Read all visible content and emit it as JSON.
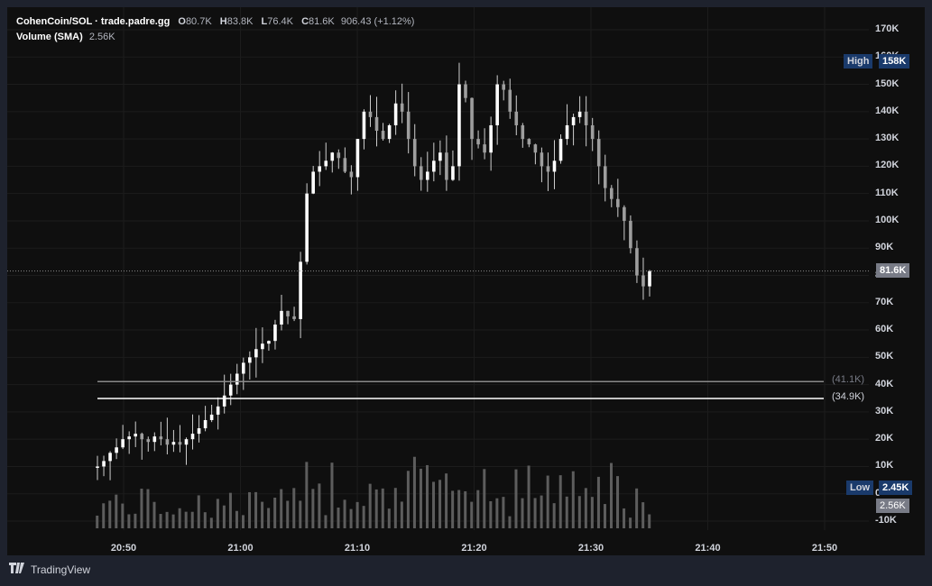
{
  "header": {
    "symbol": "CohenCoin/SOL · trade.padre.gg",
    "o_key": "O",
    "o_val": "80.7K",
    "h_key": "H",
    "h_val": "83.8K",
    "l_key": "L",
    "l_val": "76.4K",
    "c_key": "C",
    "c_val": "81.6K",
    "change": "906.43 (+1.12%)",
    "volume_label": "Volume (SMA)",
    "volume_val": "2.56K"
  },
  "tags": {
    "high_label": "High",
    "high_val": "158K",
    "current_val": "81.6K",
    "low_label": "Low",
    "low_val": "2.45K",
    "vol_val": "2.56K",
    "line1": "(41.1K)",
    "line2": "(34.9K)"
  },
  "footer": {
    "brand": "TradingView"
  },
  "colors": {
    "background": "#0f0f0f",
    "candle": "#ffffff",
    "volume": "#5d5d5d",
    "tag_blue": "#1a3a6b",
    "current_tag": "#787b86"
  },
  "chart_data": {
    "type": "candlestick",
    "y_ticks": [
      "170K",
      "160K",
      "150K",
      "140K",
      "130K",
      "120K",
      "110K",
      "100K",
      "90K",
      "80K",
      "70K",
      "60K",
      "50K",
      "40K",
      "30K",
      "20K",
      "10K",
      "0",
      "-10K"
    ],
    "x_ticks": [
      "20:50",
      "21:00",
      "21:10",
      "21:20",
      "21:30",
      "21:40",
      "21:50"
    ],
    "ylim": [
      -10000,
      170000
    ],
    "horizontal_lines": [
      41100,
      34900
    ],
    "current_price": 81600,
    "high": 158000,
    "low": 2450,
    "close_series": [
      10,
      12,
      15,
      17,
      20,
      21,
      22,
      20,
      19,
      21,
      20,
      18,
      19,
      18,
      20,
      22,
      24,
      27,
      29,
      32,
      36,
      40,
      44,
      48,
      50,
      53,
      55,
      56,
      62,
      67,
      65,
      64,
      85,
      110,
      118,
      120,
      122,
      125,
      123,
      118,
      116,
      130,
      140,
      138,
      133,
      130,
      135,
      143,
      140,
      130,
      120,
      115,
      118,
      122,
      125,
      115,
      120,
      150,
      145,
      130,
      128,
      125,
      135,
      150,
      148,
      140,
      135,
      130,
      128,
      125,
      120,
      118,
      122,
      130,
      135,
      138,
      140,
      135,
      130,
      120,
      112,
      108,
      105,
      100,
      90,
      80,
      76,
      81.6
    ]
  }
}
